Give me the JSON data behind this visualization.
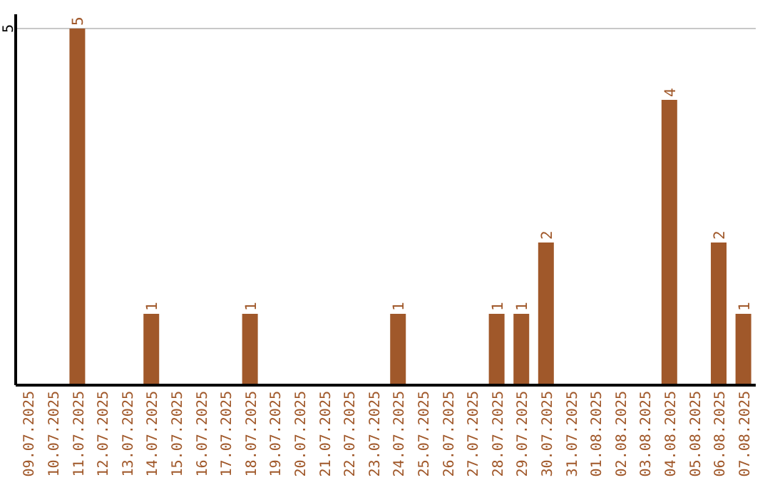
{
  "chart_data": {
    "type": "bar",
    "categories": [
      "09.07.2025",
      "10.07.2025",
      "11.07.2025",
      "12.07.2025",
      "13.07.2025",
      "14.07.2025",
      "15.07.2025",
      "16.07.2025",
      "17.07.2025",
      "18.07.2025",
      "19.07.2025",
      "20.07.2025",
      "21.07.2025",
      "22.07.2025",
      "23.07.2025",
      "24.07.2025",
      "25.07.2025",
      "26.07.2025",
      "27.07.2025",
      "28.07.2025",
      "29.07.2025",
      "30.07.2025",
      "31.07.2025",
      "01.08.2025",
      "02.08.2025",
      "03.08.2025",
      "04.08.2025",
      "05.08.2025",
      "06.08.2025",
      "07.08.2025"
    ],
    "values": [
      0,
      0,
      5,
      0,
      0,
      1,
      0,
      0,
      0,
      1,
      0,
      0,
      0,
      0,
      0,
      1,
      0,
      0,
      0,
      1,
      1,
      2,
      0,
      0,
      0,
      0,
      4,
      0,
      2,
      1
    ],
    "value_labels": [
      null,
      null,
      "5",
      null,
      null,
      "1",
      null,
      null,
      null,
      "1",
      null,
      null,
      null,
      null,
      null,
      "1",
      null,
      null,
      null,
      "1",
      "1",
      "2",
      null,
      null,
      null,
      null,
      "4",
      null,
      "2",
      "1"
    ],
    "color": "#a0582a",
    "ylim": [
      0,
      5.2
    ],
    "yticks": [
      5
    ],
    "grid": "y"
  }
}
